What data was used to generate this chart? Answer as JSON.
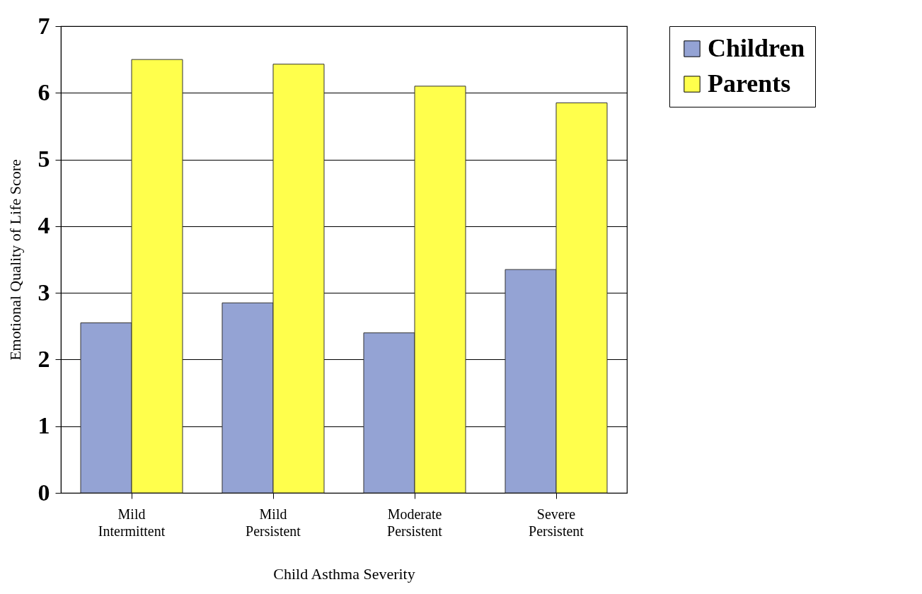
{
  "chart_data": {
    "type": "bar",
    "xlabel": "Child Asthma Severity",
    "ylabel": "Emotional Quality of Life Score",
    "categories": [
      "Mild Intermittent",
      "Mild Persistent",
      "Moderate Persistent",
      "Severe Persistent"
    ],
    "series": [
      {
        "name": "Children",
        "color": "#94a3d4",
        "values": [
          2.55,
          2.85,
          2.4,
          3.35
        ]
      },
      {
        "name": "Parents",
        "color": "#ffff4c",
        "values": [
          6.5,
          6.43,
          6.1,
          5.85
        ]
      }
    ],
    "ylim": [
      0,
      7
    ],
    "yticks": [
      0,
      1,
      2,
      3,
      4,
      5,
      6,
      7
    ],
    "grid": "y",
    "legend": "right"
  }
}
